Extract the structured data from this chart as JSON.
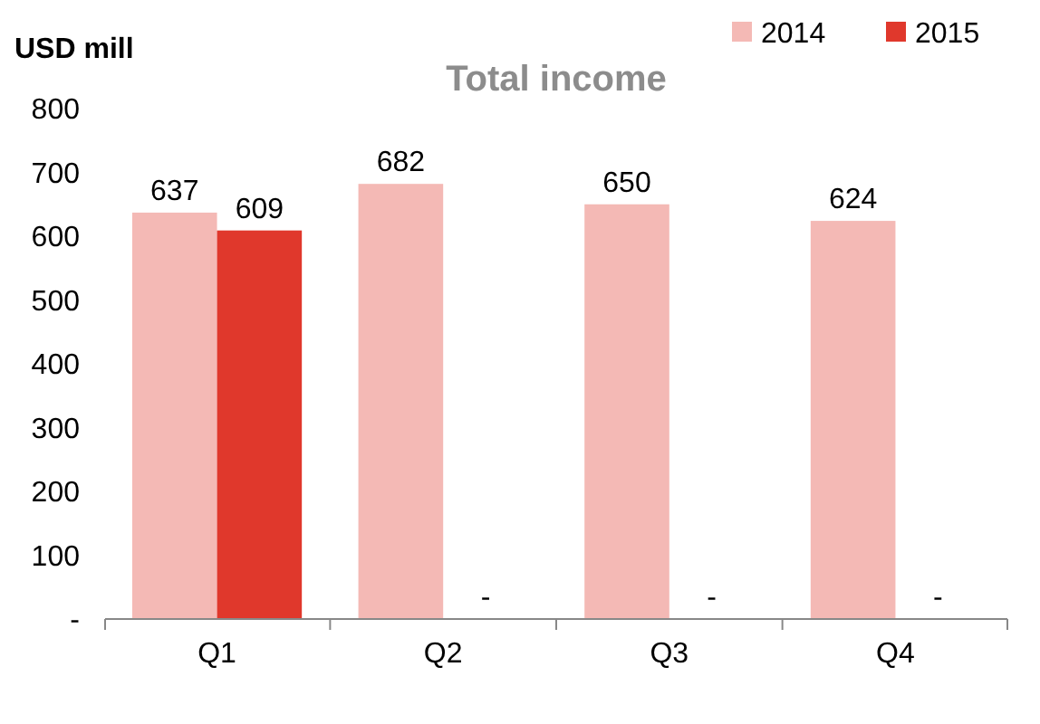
{
  "chart_data": {
    "type": "bar",
    "title": "Total income",
    "ylabel": "USD mill",
    "categories": [
      "Q1",
      "Q2",
      "Q3",
      "Q4"
    ],
    "series": [
      {
        "name": "2014",
        "color": "#f4b9b5",
        "values": [
          637,
          682,
          650,
          624
        ],
        "value_labels": [
          "637",
          "682",
          "650",
          "624"
        ]
      },
      {
        "name": "2015",
        "color": "#e0382c",
        "values": [
          609,
          null,
          null,
          null
        ],
        "value_labels": [
          "609",
          "-",
          "-",
          "-"
        ]
      }
    ],
    "ylim": [
      0,
      800
    ],
    "yticks": [
      {
        "value": 0,
        "label": "-"
      },
      100,
      200,
      300,
      400,
      500,
      600,
      700,
      800
    ],
    "grid": false,
    "legend": "top right"
  }
}
